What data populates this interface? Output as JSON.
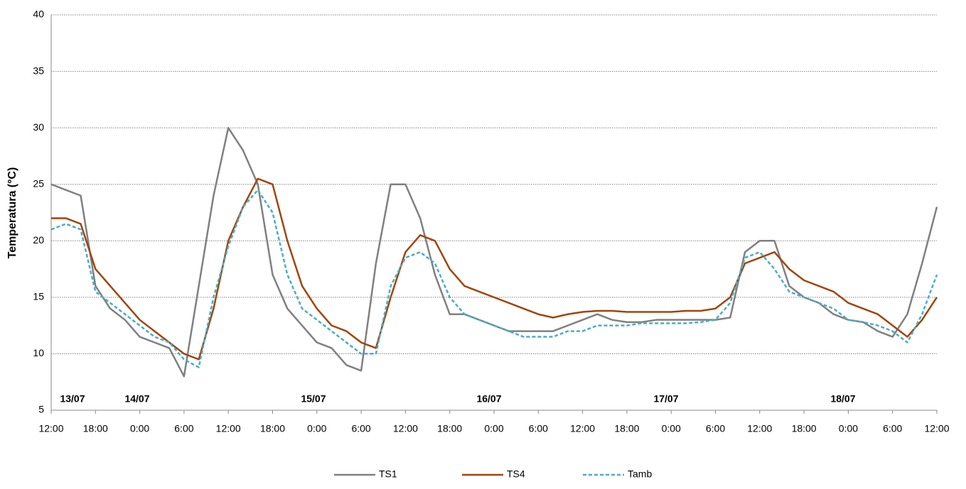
{
  "chart_data": {
    "type": "line",
    "y_label": "Temperatura (°C)",
    "x": [
      0,
      2,
      4,
      6,
      8,
      10,
      12,
      14,
      16,
      18,
      20,
      22,
      24,
      26,
      28,
      30,
      32,
      34,
      36,
      38,
      40,
      42,
      44,
      46,
      48,
      50,
      52,
      54,
      56,
      58,
      60,
      62,
      64,
      66,
      68,
      70,
      72,
      74,
      76,
      78,
      80,
      82,
      84,
      86,
      88,
      90,
      92,
      94,
      96,
      98,
      100,
      102,
      104,
      106,
      108,
      110,
      112,
      114,
      116,
      118,
      120
    ],
    "series": [
      {
        "name": "TS1",
        "color": "#808080",
        "dash": false,
        "values": [
          25,
          24.5,
          24,
          16,
          14,
          13,
          11.5,
          11,
          10.5,
          8,
          16,
          24,
          30,
          28,
          25,
          17,
          14,
          12.5,
          11,
          10.5,
          9,
          8.5,
          18,
          25,
          25,
          22,
          17,
          13.5,
          13.5,
          13,
          12.5,
          12,
          12,
          12,
          12,
          12.5,
          13,
          13.5,
          13,
          12.8,
          12.8,
          13,
          13,
          13,
          13,
          13,
          13.2,
          19,
          20,
          20,
          16,
          15,
          14.5,
          13.5,
          13,
          12.8,
          12,
          11.5,
          13.5,
          18,
          23
        ]
      },
      {
        "name": "TS4",
        "color": "#a0460c",
        "dash": false,
        "values": [
          22,
          22,
          21.5,
          17.5,
          16,
          14.5,
          13,
          12,
          11,
          10,
          9.5,
          14,
          20,
          23,
          25.5,
          25,
          20,
          16,
          14,
          12.5,
          12,
          11,
          10.5,
          15,
          19,
          20.5,
          20,
          17.5,
          16,
          15.5,
          15,
          14.5,
          14,
          13.5,
          13.2,
          13.5,
          13.7,
          13.8,
          13.8,
          13.7,
          13.7,
          13.7,
          13.7,
          13.8,
          13.8,
          14,
          15,
          18,
          18.5,
          19,
          17.5,
          16.5,
          16,
          15.5,
          14.5,
          14,
          13.5,
          12.5,
          11.5,
          13,
          15
        ]
      },
      {
        "name": "Tamb",
        "color": "#4bacc6",
        "dash": true,
        "values": [
          21,
          21.5,
          21,
          15.5,
          14.5,
          13.5,
          12.5,
          11.5,
          11,
          9.5,
          8.8,
          15,
          19.5,
          23,
          24.5,
          22.5,
          17,
          14,
          13,
          12,
          11,
          10,
          10,
          16,
          18.5,
          19,
          18,
          15,
          13.5,
          13,
          12.5,
          12,
          11.5,
          11.5,
          11.5,
          12,
          12,
          12.5,
          12.5,
          12.5,
          12.7,
          12.7,
          12.7,
          12.7,
          12.8,
          13,
          14.5,
          18.5,
          19,
          17.5,
          15.5,
          15,
          14.5,
          14,
          13,
          12.8,
          12.5,
          12,
          11,
          13.5,
          17
        ]
      }
    ],
    "xlim": [
      0,
      120
    ],
    "xticks": [
      {
        "value": 0,
        "label": "12:00"
      },
      {
        "value": 6,
        "label": "18:00"
      },
      {
        "value": 12,
        "label": "0:00"
      },
      {
        "value": 18,
        "label": "6:00"
      },
      {
        "value": 24,
        "label": "12:00"
      },
      {
        "value": 30,
        "label": "18:00"
      },
      {
        "value": 36,
        "label": "0:00"
      },
      {
        "value": 42,
        "label": "6:00"
      },
      {
        "value": 48,
        "label": "12:00"
      },
      {
        "value": 54,
        "label": "18:00"
      },
      {
        "value": 60,
        "label": "0:00"
      },
      {
        "value": 66,
        "label": "6:00"
      },
      {
        "value": 72,
        "label": "12:00"
      },
      {
        "value": 78,
        "label": "18:00"
      },
      {
        "value": 84,
        "label": "0:00"
      },
      {
        "value": 90,
        "label": "6:00"
      },
      {
        "value": 96,
        "label": "12:00"
      },
      {
        "value": 102,
        "label": "18:00"
      },
      {
        "value": 108,
        "label": "0:00"
      },
      {
        "value": 114,
        "label": "6:00"
      },
      {
        "value": 120,
        "label": "12:00"
      }
    ],
    "ylim": [
      5,
      40
    ],
    "yticks": [
      5,
      10,
      15,
      20,
      25,
      30,
      35,
      40
    ],
    "grid": true,
    "legend": "bottom",
    "annotations": [
      "13/07",
      "14/07",
      "15/07",
      "16/07",
      "17/07",
      "18/07"
    ]
  }
}
